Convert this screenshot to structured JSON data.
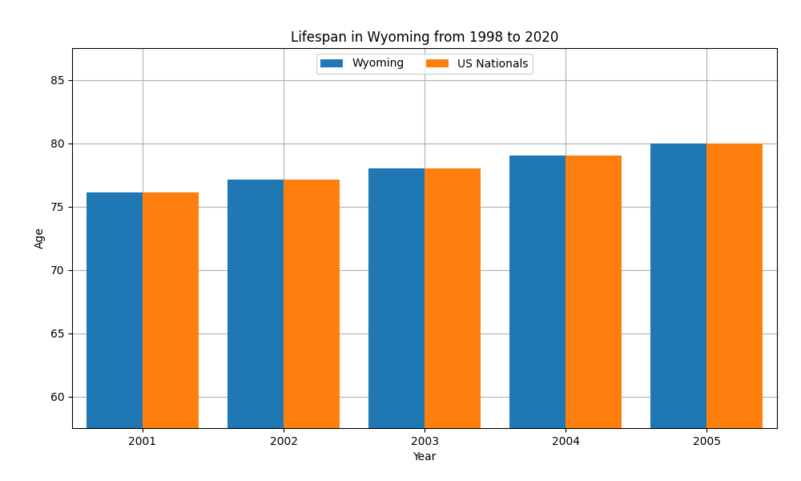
{
  "chart_data": {
    "type": "bar",
    "title": "Lifespan in Wyoming from 1998 to 2020",
    "x_label": "Year",
    "y_label": "Age",
    "categories": [
      "2001",
      "2002",
      "2003",
      "2004",
      "2005"
    ],
    "series": [
      {
        "name": "Wyoming",
        "values": [
          76.1,
          77.1,
          78.0,
          79.0,
          80.0
        ]
      },
      {
        "name": "US Nationals",
        "values": [
          76.1,
          77.1,
          78.0,
          79.0,
          80.0
        ]
      }
    ],
    "ylim": [
      57.5,
      87.5
    ],
    "yticks": [
      60,
      65,
      70,
      75,
      80,
      85
    ],
    "grid": true,
    "legend": "upper center"
  }
}
